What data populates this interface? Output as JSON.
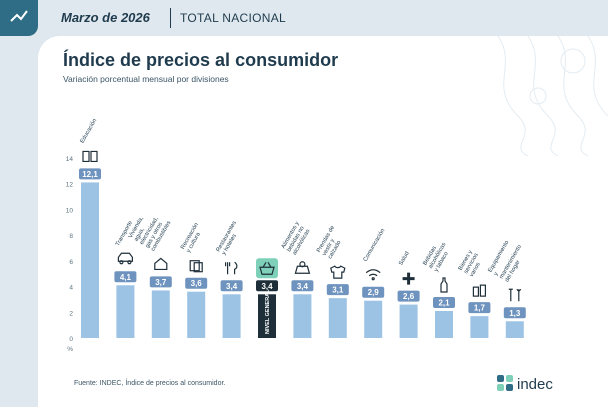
{
  "header": {
    "date": "Marzo de 2026",
    "scope": "TOTAL NACIONAL"
  },
  "chart_data": {
    "type": "bar",
    "title": "Índice de precios al consumidor",
    "subtitle": "Variación porcentual mensual por divisiones",
    "yunit": "%",
    "ylim": [
      0,
      14
    ],
    "yticks": [
      0,
      2,
      4,
      6,
      8,
      10,
      12,
      14
    ],
    "categories": [
      "Educación",
      "Transporte",
      "Vivienda, agua, electricidad, gas y otros combustibles",
      "Recreación y cultura",
      "Restaurantes y hoteles",
      "NIVEL GENERAL",
      "Alimentos y bebidas no alcohólicas",
      "Prendas de vestir y calzado",
      "Comunicación",
      "Salud",
      "Bebidas alcohólicas y tabaco",
      "Bienes y servicios varios",
      "Equipamiento y mantenimiento del hogar"
    ],
    "values": [
      12.1,
      4.1,
      3.7,
      3.6,
      3.4,
      3.4,
      3.4,
      3.1,
      2.9,
      2.6,
      2.1,
      1.7,
      1.3
    ],
    "value_labels": [
      "12,1",
      "4,1",
      "3,7",
      "3,6",
      "3,4",
      "3,4",
      "3,4",
      "3,1",
      "2,9",
      "2,6",
      "2,1",
      "1,7",
      "1,3"
    ],
    "icons": [
      "book-icon",
      "car-icon",
      "house-icon",
      "tickets-icon",
      "utensils-icon",
      "basket-icon",
      "groceries-icon",
      "tshirt-icon",
      "wifi-icon",
      "cross-icon",
      "bottle-icon",
      "bottles-icon",
      "tools-icon"
    ],
    "highlight_index": 5,
    "colors": {
      "bar": "#9cc3e4",
      "highlight_bar": "#1f2f3a",
      "label_bg": "#6f93bf",
      "highlight_label_bg": "#1f2f3a",
      "highlight_icon_bg": "#7fd0b8"
    }
  },
  "footer": {
    "source": "Fuente: INDEC, Índice de precios al consumidor.",
    "brand": "indec"
  }
}
